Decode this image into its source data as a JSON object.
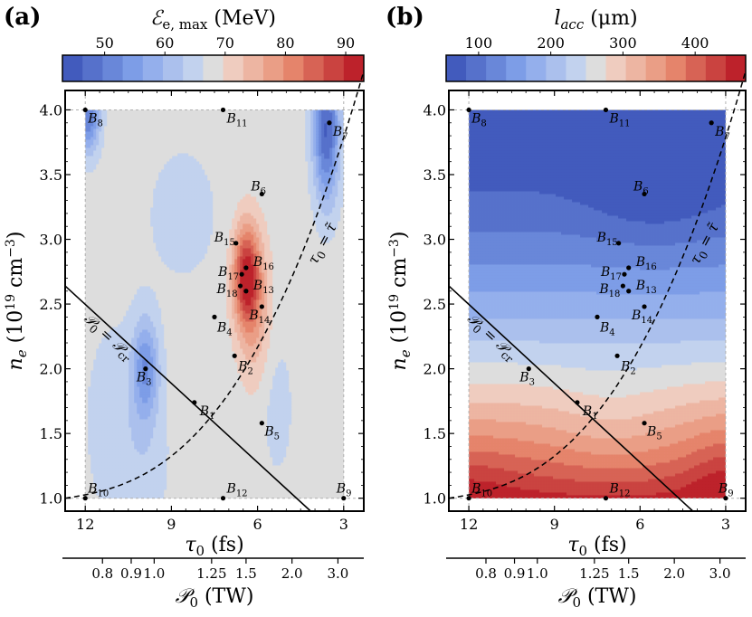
{
  "chart_data": [
    {
      "panel_label": "(a)",
      "type": "heatmap",
      "title": "",
      "colorbar": {
        "label_symbol": "ℰ",
        "label_sub": "e, max",
        "label_unit": "(MeV)",
        "ticks": [
          "50",
          "60",
          "70",
          "80",
          "90"
        ],
        "tick_values": [
          50,
          60,
          70,
          80,
          90
        ],
        "range": [
          43,
          93
        ],
        "levels": 15
      },
      "xlabel_sym": "τ",
      "xlabel_sub": "0",
      "xlabel_unit": "(fs)",
      "ylabel_sym": "n",
      "ylabel_sub": "e",
      "ylabel_unit_a": "(10",
      "ylabel_exp1": "19",
      "ylabel_unit_b": " cm",
      "ylabel_exp2": "−3",
      "ylabel_unit_c": ")",
      "x_ticks": [
        "12",
        "9",
        "6",
        "3"
      ],
      "x_tick_values": [
        12,
        9,
        6,
        3
      ],
      "xlim": [
        12.7,
        2.3
      ],
      "y_ticks": [
        "1.0",
        "1.5",
        "2.0",
        "2.5",
        "3.0",
        "3.5",
        "4.0"
      ],
      "y_tick_values": [
        1.0,
        1.5,
        2.0,
        2.5,
        3.0,
        3.5,
        4.0
      ],
      "ylim": [
        0.9,
        4.15
      ],
      "secondary_x_ticks": [
        "0.8",
        "0.9",
        "1.0",
        "1.25",
        "1.5",
        "2.0",
        "3.0"
      ],
      "secondary_x_tick_tau": [
        11.4,
        10.4,
        9.6,
        7.6,
        6.4,
        4.8,
        3.2
      ],
      "secondary_xlabel_sym": "𝒫",
      "secondary_xlabel_sub": "0",
      "secondary_xlabel_unit": "(TW)",
      "curve_label_power": "𝒫₀ = 𝒫_cr",
      "curve_label_tau": "τ₀ = τ̃",
      "points": [
        {
          "label": "B",
          "sub": "1",
          "tau": 8.2,
          "n": 1.74
        },
        {
          "label": "B",
          "sub": "2",
          "tau": 6.8,
          "n": 2.1
        },
        {
          "label": "B",
          "sub": "3",
          "tau": 9.9,
          "n": 2.0
        },
        {
          "label": "B",
          "sub": "4",
          "tau": 7.5,
          "n": 2.4
        },
        {
          "label": "B",
          "sub": "5",
          "tau": 5.85,
          "n": 1.58
        },
        {
          "label": "B",
          "sub": "6",
          "tau": 5.85,
          "n": 3.35
        },
        {
          "label": "B",
          "sub": "7",
          "tau": 3.5,
          "n": 3.9
        },
        {
          "label": "B",
          "sub": "8",
          "tau": 12.0,
          "n": 4.0
        },
        {
          "label": "B",
          "sub": "9",
          "tau": 3.0,
          "n": 1.0
        },
        {
          "label": "B",
          "sub": "10",
          "tau": 12.0,
          "n": 1.0
        },
        {
          "label": "B",
          "sub": "11",
          "tau": 7.2,
          "n": 4.0
        },
        {
          "label": "B",
          "sub": "12",
          "tau": 7.2,
          "n": 1.0
        },
        {
          "label": "B",
          "sub": "13",
          "tau": 6.4,
          "n": 2.6
        },
        {
          "label": "B",
          "sub": "14",
          "tau": 5.85,
          "n": 2.48
        },
        {
          "label": "B",
          "sub": "15",
          "tau": 6.75,
          "n": 2.97
        },
        {
          "label": "B",
          "sub": "16",
          "tau": 6.4,
          "n": 2.78
        },
        {
          "label": "B",
          "sub": "17",
          "tau": 6.55,
          "n": 2.73
        },
        {
          "label": "B",
          "sub": "18",
          "tau": 6.6,
          "n": 2.64
        }
      ]
    },
    {
      "panel_label": "(b)",
      "type": "heatmap",
      "title": "",
      "colorbar": {
        "label_symbol": "l",
        "label_sub": "acc",
        "label_unit": "(μm)",
        "ticks": [
          "100",
          "200",
          "300",
          "400"
        ],
        "tick_values": [
          100,
          200,
          300,
          400
        ],
        "range": [
          55,
          470
        ],
        "levels": 15
      },
      "xlabel_sym": "τ",
      "xlabel_sub": "0",
      "xlabel_unit": "(fs)",
      "ylabel_sym": "n",
      "ylabel_sub": "e",
      "ylabel_unit_a": "(10",
      "ylabel_exp1": "19",
      "ylabel_unit_b": " cm",
      "ylabel_exp2": "−3",
      "ylabel_unit_c": ")",
      "x_ticks": [
        "12",
        "9",
        "6",
        "3"
      ],
      "x_tick_values": [
        12,
        9,
        6,
        3
      ],
      "xlim": [
        12.7,
        2.3
      ],
      "y_ticks": [
        "1.0",
        "1.5",
        "2.0",
        "2.5",
        "3.0",
        "3.5",
        "4.0"
      ],
      "y_tick_values": [
        1.0,
        1.5,
        2.0,
        2.5,
        3.0,
        3.5,
        4.0
      ],
      "ylim": [
        0.9,
        4.15
      ],
      "secondary_x_ticks": [
        "0.8",
        "0.9",
        "1.0",
        "1.25",
        "1.5",
        "2.0",
        "3.0"
      ],
      "secondary_x_tick_tau": [
        11.4,
        10.4,
        9.6,
        7.6,
        6.4,
        4.8,
        3.2
      ],
      "secondary_xlabel_sym": "𝒫",
      "secondary_xlabel_sub": "0",
      "secondary_xlabel_unit": "(TW)",
      "curve_label_power": "𝒫₀ = 𝒫_cr",
      "curve_label_tau": "τ₀ = τ̃",
      "points": [
        {
          "label": "B",
          "sub": "1",
          "tau": 8.2,
          "n": 1.74
        },
        {
          "label": "B",
          "sub": "2",
          "tau": 6.8,
          "n": 2.1
        },
        {
          "label": "B",
          "sub": "3",
          "tau": 9.9,
          "n": 2.0
        },
        {
          "label": "B",
          "sub": "4",
          "tau": 7.5,
          "n": 2.4
        },
        {
          "label": "B",
          "sub": "5",
          "tau": 5.85,
          "n": 1.58
        },
        {
          "label": "B",
          "sub": "6",
          "tau": 5.85,
          "n": 3.35
        },
        {
          "label": "B",
          "sub": "7",
          "tau": 3.5,
          "n": 3.9
        },
        {
          "label": "B",
          "sub": "8",
          "tau": 12.0,
          "n": 4.0
        },
        {
          "label": "B",
          "sub": "9",
          "tau": 3.0,
          "n": 1.0
        },
        {
          "label": "B",
          "sub": "10",
          "tau": 12.0,
          "n": 1.0
        },
        {
          "label": "B",
          "sub": "11",
          "tau": 7.2,
          "n": 4.0
        },
        {
          "label": "B",
          "sub": "12",
          "tau": 7.2,
          "n": 1.0
        },
        {
          "label": "B",
          "sub": "13",
          "tau": 6.4,
          "n": 2.6
        },
        {
          "label": "B",
          "sub": "14",
          "tau": 5.85,
          "n": 2.48
        },
        {
          "label": "B",
          "sub": "15",
          "tau": 6.75,
          "n": 2.97
        },
        {
          "label": "B",
          "sub": "16",
          "tau": 6.4,
          "n": 2.78
        },
        {
          "label": "B",
          "sub": "17",
          "tau": 6.55,
          "n": 2.73
        },
        {
          "label": "B",
          "sub": "18",
          "tau": 6.6,
          "n": 2.64
        }
      ]
    }
  ],
  "colors": {
    "map_low": "#3a50b8",
    "map_mid": "#dcdcdc",
    "map_high": "#b8121e",
    "axis": "#000000",
    "gridline": "#b0b0b0"
  }
}
